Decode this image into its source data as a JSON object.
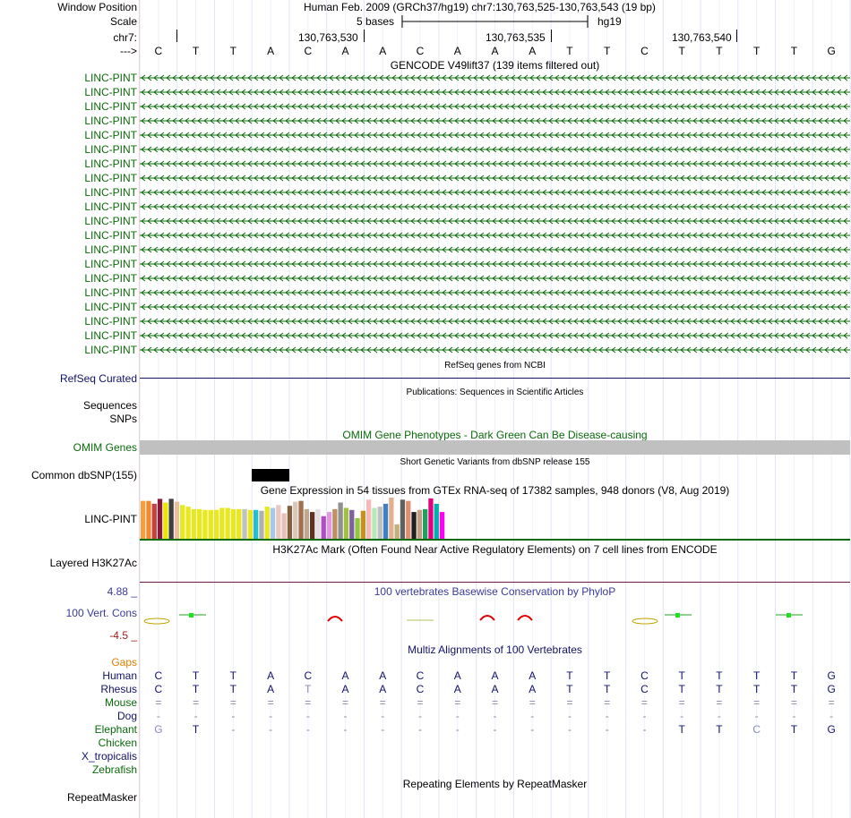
{
  "header": {
    "window_position_label": "Window Position",
    "scale_label": "Scale",
    "chr_label": "chr7:",
    "arrow_label": "--->",
    "assembly_text": "Human Feb. 2009 (GRCh37/hg19)   chr7:130,763,525-130,763,543 (19 bp)",
    "scale_bases": "5 bases",
    "scale_assembly": "hg19",
    "coord_ticks": [
      "130,763,530",
      "130,763,535",
      "130,763,540"
    ]
  },
  "sequence": [
    "C",
    "T",
    "T",
    "A",
    "C",
    "A",
    "A",
    "C",
    "A",
    "A",
    "A",
    "T",
    "T",
    "C",
    "T",
    "T",
    "T",
    "T",
    "G"
  ],
  "gencode": {
    "title": "GENCODE V49lift37 (139 items filtered out)",
    "items": [
      "LINC-PINT",
      "LINC-PINT",
      "LINC-PINT",
      "LINC-PINT",
      "LINC-PINT",
      "LINC-PINT",
      "LINC-PINT",
      "LINC-PINT",
      "LINC-PINT",
      "LINC-PINT",
      "LINC-PINT",
      "LINC-PINT",
      "LINC-PINT",
      "LINC-PINT",
      "LINC-PINT",
      "LINC-PINT",
      "LINC-PINT",
      "LINC-PINT",
      "LINC-PINT",
      "LINC-PINT"
    ],
    "color": "#0a6b0a"
  },
  "refseq": {
    "title": "RefSeq genes from NCBI",
    "label": "RefSeq Curated",
    "color": "#121268"
  },
  "publications": {
    "title": "Publications: Sequences in Scientific Articles",
    "labels": [
      "Sequences",
      "SNPs"
    ]
  },
  "omim": {
    "title": "OMIM Gene Phenotypes - Dark Green Can Be Disease-causing",
    "label": "OMIM Genes",
    "color": "#0a6b0a"
  },
  "dbsnp": {
    "title": "Short Genetic Variants from dbSNP release 155",
    "label": "Common dbSNP(155)"
  },
  "gtex": {
    "title": "Gene Expression in 54 tissues from GTEx RNA-seq of 17382 samples, 948 donors (V8, Aug 2019)",
    "label": "LINC-PINT",
    "bar_values": [
      0.92,
      0.92,
      0.85,
      0.97,
      0.88,
      0.97,
      0.9,
      0.82,
      0.78,
      0.72,
      0.72,
      0.7,
      0.7,
      0.7,
      0.75,
      0.75,
      0.72,
      0.72,
      0.72,
      0.7,
      0.7,
      0.68,
      0.78,
      0.75,
      0.82,
      0.62,
      0.8,
      0.9,
      0.92,
      0.72,
      0.65,
      0.72,
      0.55,
      0.65,
      0.72,
      0.88,
      0.75,
      0.7,
      0.5,
      0.68,
      0.95,
      0.75,
      0.78,
      0.85,
      1.0,
      0.35,
      0.95,
      0.92,
      0.65,
      0.7,
      0.72,
      0.98,
      0.85,
      0.65
    ],
    "bar_colors": [
      "#f5a040",
      "#f08a30",
      "#c84040",
      "#8a1a3a",
      "#e8e800",
      "#404040",
      "#e8c0a0",
      "#e8e820",
      "#e8e820",
      "#e8e820",
      "#e8e820",
      "#e8e820",
      "#e8e820",
      "#e8e820",
      "#e8e820",
      "#e8e820",
      "#e8e820",
      "#e8e820",
      "#c0c0c0",
      "#e8e820",
      "#20c0d0",
      "#b0b0b0",
      "#e8e820",
      "#a8c8e8",
      "#e8c8c0",
      "#e8c0b8",
      "#806040",
      "#d8c8b8",
      "#a07050",
      "#c0a890",
      "#603020",
      "#e0e0e0",
      "#b050c0",
      "#e098e0",
      "#c09060",
      "#909090",
      "#a0c040",
      "#8060a0",
      "#90c840",
      "#c89020",
      "#f8b8b8",
      "#b8e8b8",
      "#c0c0c0",
      "#4080c0",
      "#e0b090",
      "#c0b080",
      "#606060",
      "#e09070",
      "#202020",
      "#c0a080",
      "#20a060",
      "#e00080",
      "#00b0b0",
      "#ff00ff"
    ],
    "baseline_color": "#0a6b0a"
  },
  "h3k27ac": {
    "title": "H3K27Ac Mark (Often Found Near Active Regulatory Elements) on 7 cell lines from ENCODE",
    "label": "Layered H3K27Ac",
    "baseline_color": "#6a1b4a"
  },
  "conservation": {
    "title": "100 vertebrates Basewise Conservation by PhyloP",
    "label": "100 Vert. Cons",
    "max_label": "4.88 _",
    "min_label": "-4.5 _",
    "title_color": "#3a3a9a",
    "max_color": "#3a3a9a",
    "min_color": "#9a1a1a"
  },
  "multiz": {
    "title": "Multiz Alignments of 100 Vertebrates",
    "gaps_label": "Gaps",
    "gaps_color": "#e08000",
    "species": [
      {
        "name": "Human",
        "color": "#121268",
        "row": [
          "C",
          "T",
          "T",
          "A",
          "C",
          "A",
          "A",
          "C",
          "A",
          "A",
          "A",
          "T",
          "T",
          "C",
          "T",
          "T",
          "T",
          "T",
          "G"
        ]
      },
      {
        "name": "Rhesus",
        "color": "#121268",
        "row": [
          "C",
          "T",
          "T",
          "A",
          "T",
          "A",
          "A",
          "C",
          "A",
          "A",
          "A",
          "T",
          "T",
          "C",
          "T",
          "T",
          "T",
          "T",
          "G"
        ]
      },
      {
        "name": "Mouse",
        "color": "#0a6b0a",
        "row": [
          "=",
          "=",
          "=",
          "=",
          "=",
          "=",
          "=",
          "=",
          "=",
          "=",
          "=",
          "=",
          "=",
          "=",
          "=",
          "=",
          "=",
          "=",
          "="
        ]
      },
      {
        "name": "Dog",
        "color": "#121268",
        "row": [
          "-",
          "-",
          "-",
          "-",
          "-",
          "-",
          "-",
          "-",
          "-",
          "-",
          "-",
          "-",
          "-",
          "-",
          "-",
          "-",
          "-",
          "-",
          "-"
        ]
      },
      {
        "name": "Elephant",
        "color": "#0a6b0a",
        "row": [
          "G",
          "T",
          "-",
          "-",
          "-",
          "-",
          "-",
          "-",
          "-",
          "-",
          "-",
          "-",
          "-",
          "-",
          "T",
          "T",
          "C",
          "T",
          "G"
        ]
      },
      {
        "name": "Chicken",
        "color": "#0a6b0a",
        "row": []
      },
      {
        "name": "X_tropicalis",
        "color": "#121268",
        "row": []
      },
      {
        "name": "Zebrafish",
        "color": "#0a6b0a",
        "row": []
      }
    ]
  },
  "repeatmasker": {
    "title": "Repeating Elements by RepeatMasker",
    "label": "RepeatMasker"
  }
}
